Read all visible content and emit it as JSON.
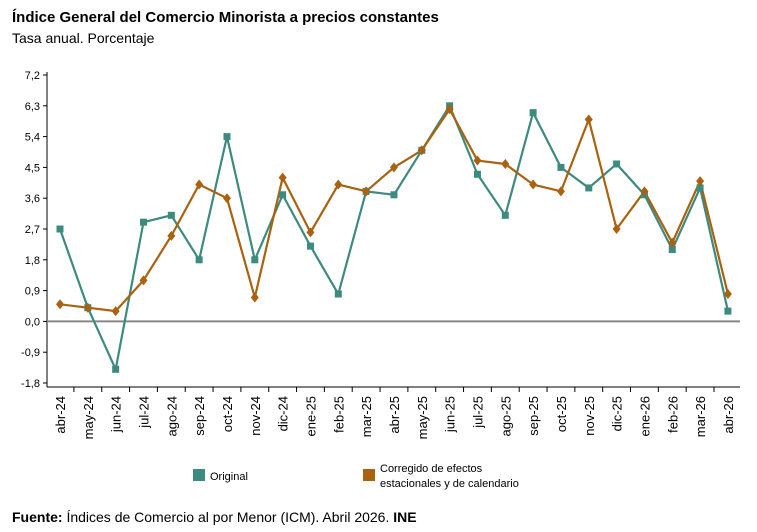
{
  "title": "Índice General del Comercio Minorista a precios constantes",
  "subtitle": "Tasa anual. Porcentaje",
  "source": {
    "label": "Fuente:",
    "text": " Índices de Comercio al por Menor (ICM).  Abril 2026. ",
    "org": "INE"
  },
  "chart_data": {
    "type": "line",
    "categories": [
      "abr-24",
      "may-24",
      "jun-24",
      "jul-24",
      "ago-24",
      "sep-24",
      "oct-24",
      "nov-24",
      "dic-24",
      "ene-25",
      "feb-25",
      "mar-25",
      "abr-25",
      "may-25",
      "jun-25",
      "jul-25",
      "ago-25",
      "sep-25",
      "oct-25",
      "nov-25",
      "dic-25",
      "ene-26",
      "feb-26",
      "mar-26",
      "abr-26"
    ],
    "category_labels": [
      "abr-24",
      "may-24",
      "jun-24",
      "jul-24",
      "ago-24",
      "sep-24",
      "oct-24",
      "nov-24",
      "dic-24",
      "ene-25",
      "feb-25",
      "mar-25",
      "abr-25",
      "may-25",
      "jun-25",
      "jul-25",
      "ago-25",
      "sep-25",
      "oct-25",
      "nov-25",
      "dic-25",
      "ene-26",
      "feb-26",
      "mar-26",
      "abr-26"
    ],
    "yticks": [
      "7,2",
      "6,3",
      "5,4",
      "4,5",
      "3,6",
      "2,7",
      "1,8",
      "0,9",
      "0,0",
      "-0,9",
      "-1,8"
    ],
    "ylim": [
      -1.8,
      7.2
    ],
    "series": [
      {
        "name": "Original",
        "color": "#3d8a7e",
        "marker": "square",
        "values": [
          2.7,
          0.4,
          -1.4,
          2.9,
          3.1,
          1.8,
          5.4,
          1.8,
          3.7,
          2.2,
          0.8,
          3.8,
          3.7,
          5.0,
          6.3,
          4.3,
          3.1,
          6.1,
          4.5,
          3.9,
          4.6,
          3.7,
          2.1,
          3.9,
          0.3
        ]
      },
      {
        "name": "Corregido de efectos estacionales y de calendario",
        "color": "#a9620f",
        "marker": "diamond",
        "values": [
          0.5,
          0.4,
          0.3,
          1.2,
          2.5,
          4.0,
          3.6,
          0.7,
          4.2,
          2.6,
          4.0,
          3.8,
          4.5,
          5.0,
          6.2,
          4.7,
          4.6,
          4.0,
          3.8,
          5.9,
          2.7,
          3.8,
          2.3,
          4.1,
          0.8
        ]
      }
    ],
    "legend": [
      {
        "label": "Original",
        "color": "#3d8a7e"
      },
      {
        "label_line1": "Corregido de efectos",
        "label_line2": "estacionales y de calendario",
        "color": "#a9620f"
      }
    ]
  }
}
